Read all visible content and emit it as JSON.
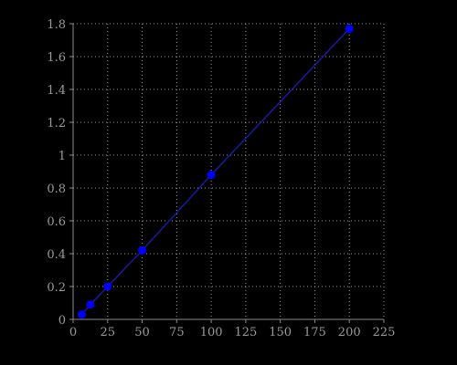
{
  "colors": {
    "background": "#000000",
    "axis": "#8a8a8a",
    "grid": "#9a9a9a",
    "tick_text": "#9a9a9a",
    "series": "#0000ff",
    "series_line": "#1a1aa0"
  },
  "chart_data": {
    "type": "scatter",
    "title": "",
    "xlabel": "",
    "ylabel": "",
    "xlim": [
      0,
      225
    ],
    "ylim": [
      0,
      1.8
    ],
    "xticks": [
      0,
      25,
      50,
      75,
      100,
      125,
      150,
      175,
      200,
      225
    ],
    "xtick_labels": [
      "0",
      "25",
      "50",
      "75",
      "100",
      "125",
      "150",
      "175",
      "200",
      "225"
    ],
    "yticks": [
      0,
      0.2,
      0.4,
      0.6,
      0.8,
      1,
      1.2,
      1.4,
      1.6,
      1.8
    ],
    "ytick_labels": [
      "0",
      "0.2",
      "0.4",
      "0.6",
      "0.8",
      "1",
      "1.2",
      "1.4",
      "1.6",
      "1.8"
    ],
    "grid": true,
    "legend": "none",
    "series": [
      {
        "x": [
          6.25,
          12.5,
          25,
          50,
          100,
          200
        ],
        "y": [
          0.03,
          0.09,
          0.2,
          0.42,
          0.88,
          1.77
        ],
        "color": "#0000ff",
        "line": "linear fit"
      }
    ]
  }
}
